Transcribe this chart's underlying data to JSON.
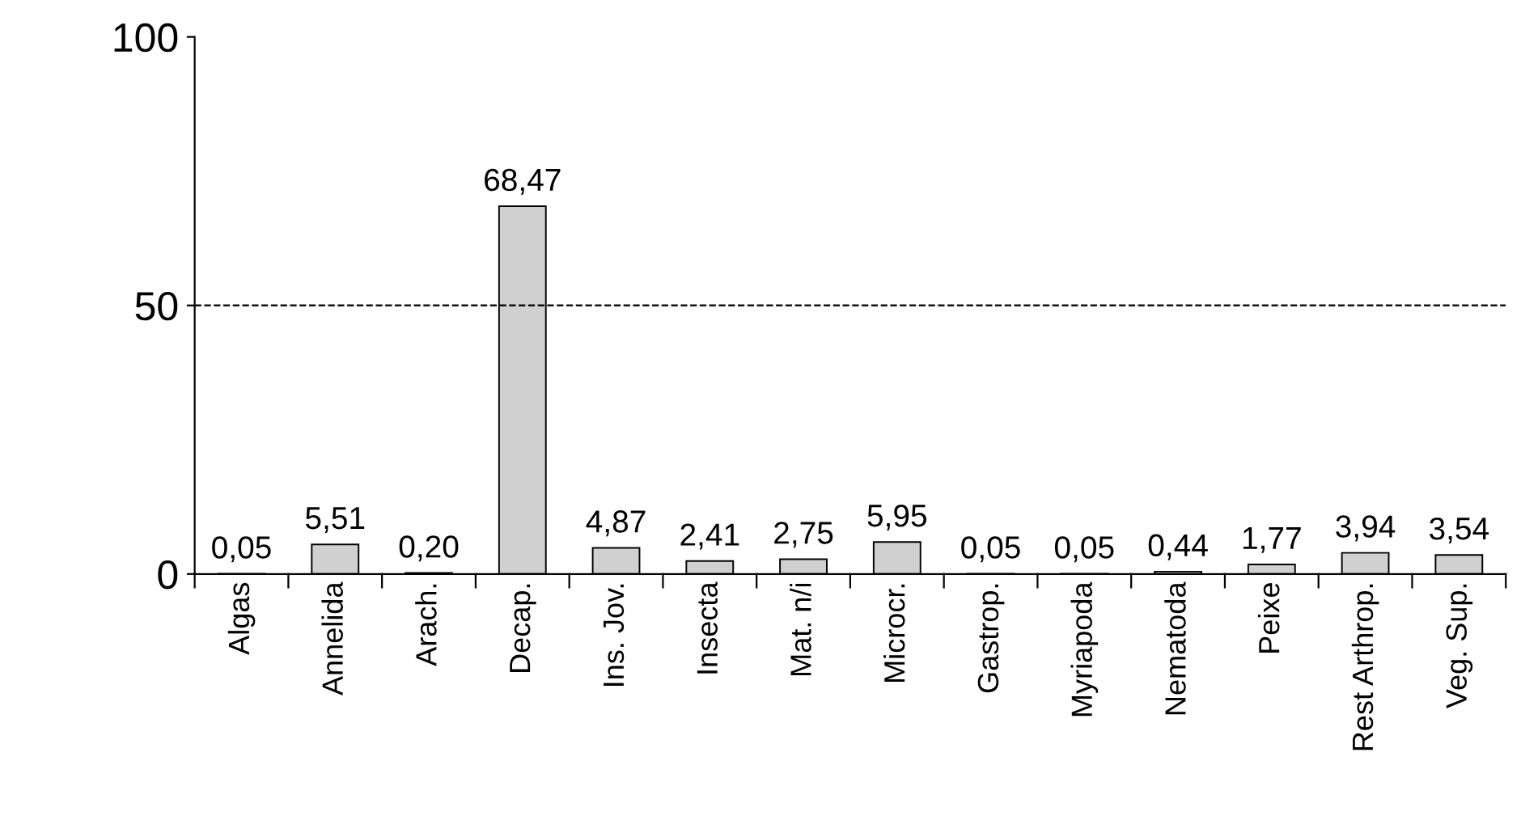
{
  "chart_data": {
    "type": "bar",
    "categories": [
      "Algas",
      "Annelida",
      "Arach.",
      "Decap.",
      "Ins. Jov.",
      "Insecta",
      "Mat. n/i",
      "Microcr.",
      "Gastrop.",
      "Myriapoda",
      "Nematoda",
      "Peixe",
      "Rest Arthrop.",
      "Veg. Sup."
    ],
    "values": [
      0.05,
      5.51,
      0.2,
      68.47,
      4.87,
      2.41,
      2.75,
      5.95,
      0.05,
      0.05,
      0.44,
      1.77,
      3.94,
      3.54
    ],
    "value_labels": [
      "0,05",
      "5,51",
      "0,20",
      "68,47",
      "4,87",
      "2,41",
      "2,75",
      "5,95",
      "0,05",
      "0,05",
      "0,44",
      "1,77",
      "3,94",
      "3,54"
    ],
    "color": "#d0d0d0",
    "ylim": [
      0,
      100
    ],
    "yticks": [
      0,
      50,
      100
    ],
    "ref_lines": [
      {
        "axis": "y",
        "value": 50,
        "line_style": "dashed",
        "color": "#000000"
      }
    ],
    "grid": false,
    "legend": false
  }
}
